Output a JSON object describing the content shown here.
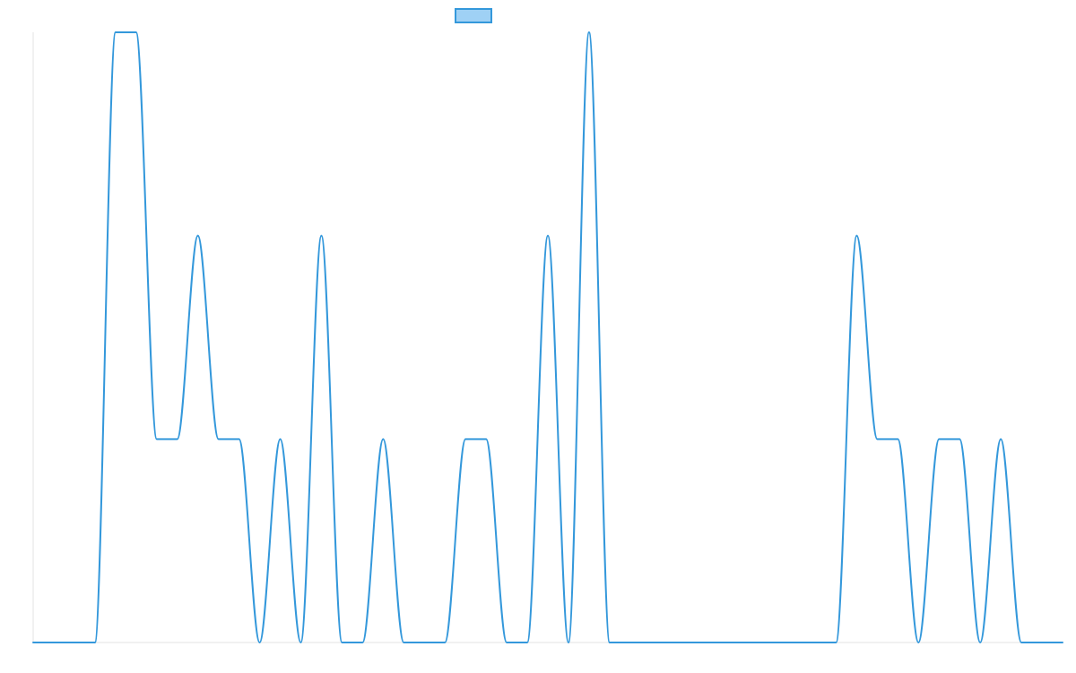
{
  "chart_data": {
    "type": "line",
    "title": "",
    "xlabel": "",
    "ylabel": "",
    "grid": false,
    "legend": {
      "placement": "top-center",
      "entries": [
        {
          "label": "",
          "fill": "#9fd1f5",
          "stroke": "#3498db"
        }
      ]
    },
    "xlim": [
      0,
      50
    ],
    "ylim": [
      0,
      3
    ],
    "series": [
      {
        "color": "#3498db",
        "x": [
          0,
          1,
          2,
          3,
          4,
          5,
          6,
          7,
          8,
          9,
          10,
          11,
          12,
          13,
          14,
          15,
          16,
          17,
          18,
          19,
          20,
          21,
          22,
          23,
          24,
          25,
          26,
          27,
          28,
          29,
          30,
          31,
          32,
          33,
          34,
          35,
          36,
          37,
          38,
          39,
          40,
          41,
          42,
          43,
          44,
          45,
          46,
          47,
          48,
          49,
          50
        ],
        "values": [
          0,
          0,
          0,
          0,
          3,
          3,
          1,
          1,
          2,
          1,
          1,
          0,
          1,
          0,
          2,
          0,
          0,
          1,
          0,
          0,
          0,
          1,
          1,
          0,
          0,
          2,
          0,
          3,
          0,
          0,
          0,
          0,
          0,
          0,
          0,
          0,
          0,
          0,
          0,
          0,
          2,
          1,
          1,
          0,
          1,
          1,
          0,
          1,
          0,
          0,
          0
        ]
      }
    ]
  }
}
